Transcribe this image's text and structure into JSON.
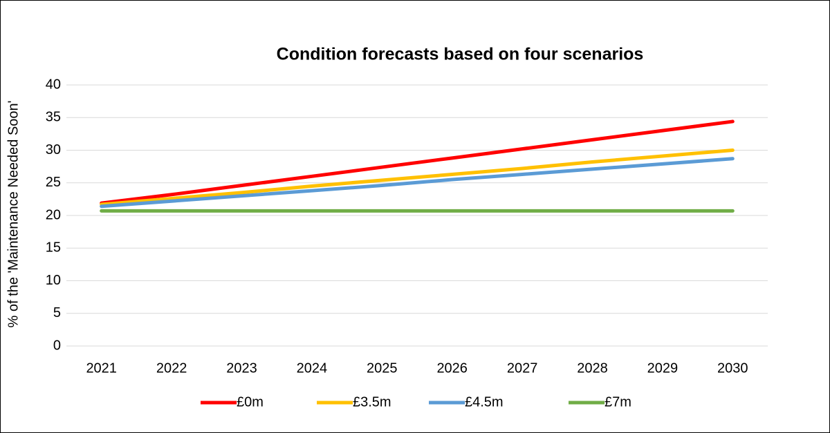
{
  "chart_data": {
    "type": "line",
    "title": "Condition forecasts based on four scenarios",
    "y_label": "% of the 'Maintenance Needed Soon'",
    "categories": [
      "2021",
      "2022",
      "2023",
      "2024",
      "2025",
      "2026",
      "2027",
      "2028",
      "2029",
      "2030"
    ],
    "series": [
      {
        "name": "£0m",
        "color": "#ff0000",
        "values": [
          21.9,
          23.2,
          24.6,
          26.0,
          27.4,
          28.8,
          30.2,
          31.6,
          33.0,
          34.4
        ]
      },
      {
        "name": "£3.5m",
        "color": "#ffc000",
        "values": [
          21.7,
          22.6,
          23.5,
          24.5,
          25.4,
          26.3,
          27.2,
          28.2,
          29.1,
          30.0
        ]
      },
      {
        "name": "£4.5m",
        "color": "#5b9bd5",
        "values": [
          21.4,
          22.2,
          23.0,
          23.8,
          24.6,
          25.5,
          26.3,
          27.1,
          27.9,
          28.7
        ]
      },
      {
        "name": "£7m",
        "color": "#70ad47",
        "values": [
          20.7,
          20.7,
          20.7,
          20.7,
          20.7,
          20.7,
          20.7,
          20.7,
          20.7,
          20.7
        ]
      }
    ],
    "ylim": [
      0,
      40
    ],
    "yticks": [
      0,
      5,
      10,
      15,
      20,
      25,
      30,
      35,
      40
    ],
    "grid": true,
    "legend": "bottom"
  }
}
